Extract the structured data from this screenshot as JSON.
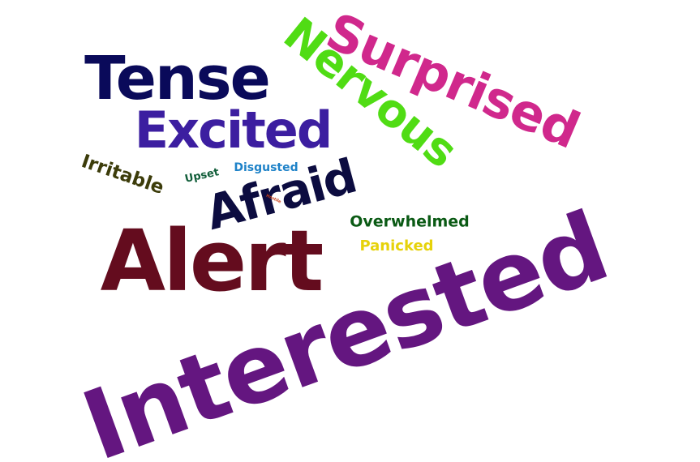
{
  "wordcloud": {
    "words": [
      {
        "text": "Interested",
        "color": "#641680"
      },
      {
        "text": "Alert",
        "color": "#640c1e"
      },
      {
        "text": "Tense",
        "color": "#0a0a5a"
      },
      {
        "text": "Excited",
        "color": "#3c1ea0"
      },
      {
        "text": "Afraid",
        "color": "#0c0c40"
      },
      {
        "text": "Surprised",
        "color": "#d0288c"
      },
      {
        "text": "Nervous",
        "color": "#50dc14"
      },
      {
        "text": "Irritable",
        "color": "#3c3c0a"
      },
      {
        "text": "Upset",
        "color": "#125e3a"
      },
      {
        "text": "Disgusted",
        "color": "#1e82c8"
      },
      {
        "text": "Overwhelmed",
        "color": "#0a5a14"
      },
      {
        "text": "Panicked",
        "color": "#e6d20a"
      },
      {
        "text": "Hostile",
        "color": "#c83c14"
      }
    ]
  }
}
